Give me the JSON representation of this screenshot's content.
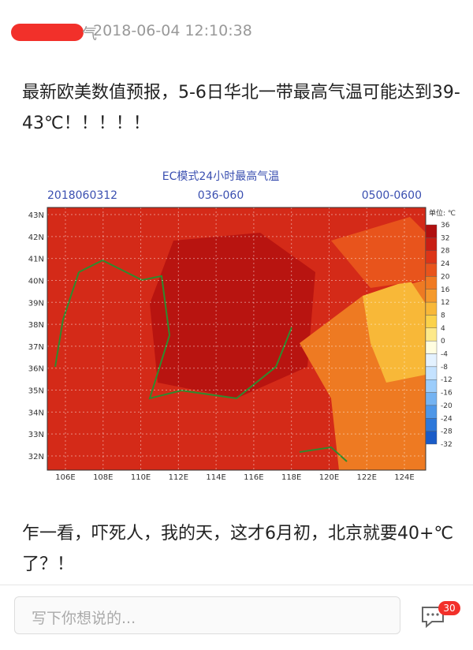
{
  "header": {
    "username_tail": "气",
    "timestamp": "2018-06-04 12:10:38"
  },
  "post": {
    "text_1": "最新欧美数值预报，5-6日华北一带最高气温可能达到39-43℃！！！！！",
    "image": {
      "title": "EC模式24小时最高气温",
      "run": "2018060312",
      "hours": "036-060",
      "time": "0500-0600",
      "lat_labels": [
        "43N",
        "42N",
        "41N",
        "40N",
        "39N",
        "38N",
        "37N",
        "36N",
        "35N",
        "34N",
        "33N",
        "32N"
      ],
      "lon_labels": [
        "106E",
        "108E",
        "110E",
        "112E",
        "114E",
        "116E",
        "118E",
        "120E",
        "122E",
        "124E"
      ],
      "colorbar": {
        "unit": "单位: ℃",
        "labels": [
          36,
          32,
          28,
          24,
          20,
          16,
          12,
          8,
          4,
          0,
          -4,
          -8,
          -12,
          -16,
          -20,
          -24,
          -28,
          -32
        ],
        "colors": [
          "#b01010",
          "#c81e14",
          "#dc3518",
          "#e8541c",
          "#f07a22",
          "#f59a2c",
          "#f8b838",
          "#fbd24a",
          "#fde98a",
          "#fffde0",
          "#e4f2ff",
          "#c4e2ff",
          "#9ccdfb",
          "#74b3f2",
          "#4e97e8",
          "#2d78da",
          "#1a5cc8",
          "#1a5cc8"
        ]
      }
    },
    "text_2": "乍一看，吓死人，我的天，这才6月初，北京就要40+℃了？！"
  },
  "footer": {
    "placeholder": "写下你想说的...",
    "badge": "30"
  }
}
